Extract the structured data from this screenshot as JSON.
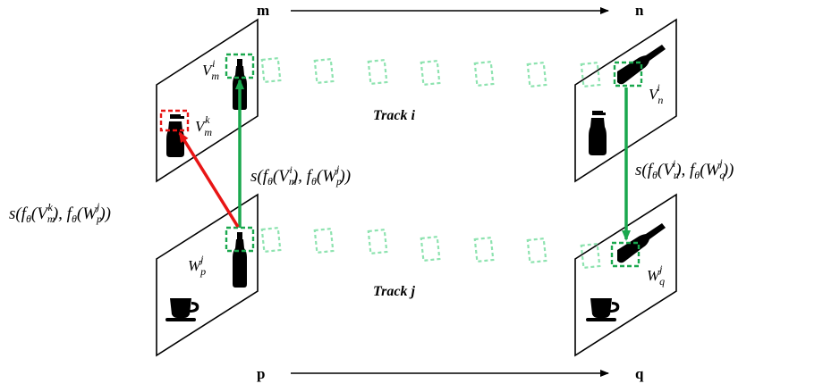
{
  "labels": {
    "m": "m",
    "n": "n",
    "p": "p",
    "q": "q",
    "track_i": "Track  i",
    "track_j": "Track  j"
  },
  "frame_labels": {
    "Vm_i": {
      "base": "V",
      "sub": "m",
      "sup": "i"
    },
    "Vm_k": {
      "base": "V",
      "sub": "m",
      "sup": "k"
    },
    "Vn_i": {
      "base": "V",
      "sub": "n",
      "sup": "i"
    },
    "Wp_j": {
      "base": "W",
      "sub": "p",
      "sup": "j"
    },
    "Wq_j": {
      "base": "W",
      "sub": "q",
      "sup": "j"
    }
  },
  "formulas": {
    "s_vm_wp": {
      "pre": "s(f",
      "theta": "θ",
      "a_base": "V",
      "a_sub": "m",
      "a_sup": "i",
      "b_base": "W",
      "b_sub": "p",
      "b_sup": "j"
    },
    "s_vn_wq": {
      "pre": "s(f",
      "theta": "θ",
      "a_base": "V",
      "a_sub": "n",
      "a_sup": "i",
      "b_base": "W",
      "b_sub": "q",
      "b_sup": "j"
    },
    "s_vmk_wp": {
      "pre": "s(f",
      "theta": "θ",
      "a_base": "V",
      "a_sub": "m",
      "a_sup": "k",
      "b_base": "W",
      "b_sub": "p",
      "b_sup": "j"
    }
  },
  "colors": {
    "positive_arrow": "#1aa84e",
    "negative_arrow": "#e81515",
    "track_box": "#8ee3b0",
    "selected_box": "#1aa84e",
    "negative_box": "#e81515",
    "icon": "#000000"
  },
  "icons": [
    "bottle-icon",
    "cup-icon",
    "sports-bottle-icon",
    "coffee-cup-icon"
  ]
}
